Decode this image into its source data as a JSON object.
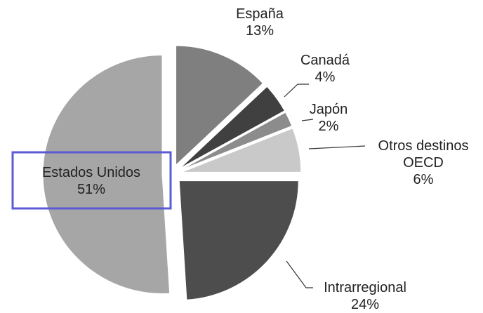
{
  "chart_data": {
    "type": "pie",
    "categories": [
      "España",
      "Canadá",
      "Japón",
      "Otros destinos OECD",
      "Intrarregional",
      "Estados Unidos"
    ],
    "values": [
      13,
      4,
      2,
      6,
      24,
      51
    ],
    "value_labels": [
      "13%",
      "4%",
      "2%",
      "6%",
      "24%",
      "51%"
    ],
    "colors": [
      "#7f7f7f",
      "#404040",
      "#8c8c8c",
      "#c9c9c9",
      "#4d4d4d",
      "#a6a6a6"
    ]
  }
}
